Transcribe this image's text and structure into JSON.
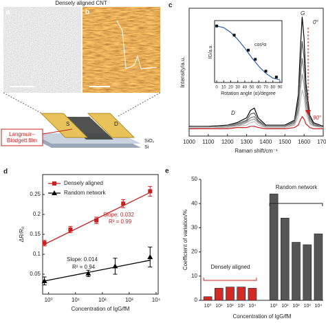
{
  "figure": {
    "title": "Densely aligned CNT",
    "panels": [
      "a",
      "b"
    ],
    "film_label": "Langmuir–Blodgett film",
    "source": "S",
    "drain": "D",
    "oxide": "SiO₂",
    "substrate": "Si"
  },
  "chart_data": [
    {
      "type": "line",
      "panel": "c",
      "xlabel": "Raman shift/cm⁻¹",
      "ylabel": "Intensity/a.u.",
      "x": [
        1000,
        1100,
        1200,
        1250,
        1300,
        1320,
        1340,
        1360,
        1400,
        1500,
        1550,
        1570,
        1580,
        1590,
        1600,
        1610,
        1630,
        1650,
        1700
      ],
      "series": [
        {
          "color": "#000000",
          "values": [
            8,
            8,
            9,
            11,
            15,
            21,
            23,
            15,
            9,
            9,
            13,
            34,
            70,
            98,
            80,
            43,
            17,
            11,
            8
          ]
        },
        {
          "color": "#555555",
          "values": [
            7,
            7,
            8,
            10,
            13,
            18,
            19,
            13,
            8,
            8,
            12,
            28,
            56,
            78,
            64,
            35,
            15,
            10,
            7
          ]
        },
        {
          "color": "#777777",
          "values": [
            7,
            7,
            8,
            9,
            12,
            15,
            16,
            12,
            8,
            8,
            11,
            23,
            47,
            64,
            52,
            29,
            13,
            9,
            7
          ]
        },
        {
          "color": "#999999",
          "values": [
            7,
            7,
            7,
            8,
            11,
            13,
            14,
            11,
            7,
            7,
            10,
            20,
            38,
            51,
            42,
            24,
            11,
            8,
            7
          ]
        },
        {
          "color": "#bbbbbb",
          "values": [
            7,
            7,
            7,
            8,
            9,
            11,
            12,
            9,
            7,
            7,
            9,
            16,
            28,
            38,
            32,
            19,
            10,
            8,
            7
          ]
        },
        {
          "color": "#c8201e",
          "values": [
            6,
            6,
            6,
            7,
            7,
            8,
            8,
            7,
            6,
            6,
            7,
            9,
            13,
            16,
            14,
            10,
            7,
            6,
            6
          ]
        }
      ],
      "xlim": [
        1000,
        1700
      ],
      "xticks": [
        1000,
        1100,
        1200,
        1300,
        1400,
        1500,
        1600,
        1700
      ],
      "ylim": [
        0,
        105
      ],
      "annotations": [
        "G",
        "D",
        "0°",
        "90°"
      ]
    },
    {
      "type": "scatter",
      "xlabel": "Rotation angle (α)/degree",
      "ylabel": "IG/a.u.",
      "series": [
        {
          "name": "cos²α",
          "style": "line",
          "color": "#2a5caa",
          "x": [
            0,
            10,
            20,
            30,
            40,
            50,
            60,
            70,
            80,
            90
          ],
          "values": [
            1,
            0.97,
            0.88,
            0.75,
            0.59,
            0.41,
            0.25,
            0.12,
            0.03,
            0
          ]
        },
        {
          "style": "marker",
          "color": "#111111",
          "x": [
            0,
            25,
            45,
            55,
            70,
            85
          ],
          "values": [
            1.0,
            0.83,
            0.55,
            0.38,
            0.16,
            0.05
          ]
        }
      ],
      "xlim": [
        -3,
        93
      ],
      "xticks": [
        0,
        10,
        20,
        30,
        40,
        50,
        60,
        70,
        80,
        90
      ],
      "ylim": [
        -0.05,
        1.1
      ]
    },
    {
      "type": "scatter",
      "panel": "d",
      "xlabel": "Concentration of IgG/fM",
      "ylabel": "ΔR/R₀",
      "xscale": "log",
      "series": [
        {
          "name": "Densely aligned",
          "color": "#c8201e",
          "marker": "square",
          "x": [
            0.7,
            6.5,
            60,
            600,
            6000
          ],
          "values": [
            0.128,
            0.162,
            0.185,
            0.227,
            0.258
          ],
          "errors": [
            0.007,
            0.008,
            0.008,
            0.01,
            0.012
          ],
          "fit": {
            "x": [
              0.7,
              6000
            ],
            "values": [
              0.125,
              0.255
            ]
          }
        },
        {
          "name": "Random network",
          "color": "#000000",
          "marker": "triangle",
          "x": [
            0.7,
            30,
            300,
            6000
          ],
          "values": [
            0.033,
            0.052,
            0.07,
            0.093
          ],
          "errors": [
            0.01,
            0.008,
            0.02,
            0.025
          ],
          "fit": {
            "x": [
              0.7,
              6000
            ],
            "values": [
              0.033,
              0.085
            ]
          }
        }
      ],
      "xlim": [
        0.6,
        12000
      ],
      "xticks": [
        {
          "value": 1,
          "label": "10⁰"
        },
        {
          "value": 10,
          "label": "10¹"
        },
        {
          "value": 100,
          "label": "10²"
        },
        {
          "value": 1000,
          "label": "10³"
        },
        {
          "value": 10000,
          "label": "10⁴"
        }
      ],
      "ylim": [
        0,
        0.3
      ],
      "yticks": [
        0.05,
        0.1,
        0.15,
        0.2,
        0.25
      ],
      "legend": "top-left",
      "annotations": [
        "Slope: 0.032",
        "R² = 0.99",
        "Slope: 0.014",
        "R² = 0.94"
      ]
    },
    {
      "type": "bar",
      "panel": "e",
      "xlabel": "Concentration of IgG/fM",
      "ylabel": "Coefficient of variation/%",
      "categories": [
        "10⁰",
        "10¹",
        "10²",
        "10³",
        "10⁴",
        "10⁰",
        "10¹",
        "10²",
        "10³",
        "10⁴"
      ],
      "series": [
        {
          "name": "Densely aligned",
          "color": "#d42a25",
          "values": [
            1.5,
            5,
            5.5,
            5.5,
            5,
            null,
            null,
            null,
            null,
            null
          ]
        },
        {
          "name": "Random network",
          "color": "#555555",
          "values": [
            null,
            null,
            null,
            null,
            null,
            44,
            34,
            24,
            23,
            27.5
          ]
        }
      ],
      "ylim": [
        0,
        50
      ],
      "yticks": [
        0,
        10,
        20,
        30,
        40,
        50
      ]
    }
  ]
}
